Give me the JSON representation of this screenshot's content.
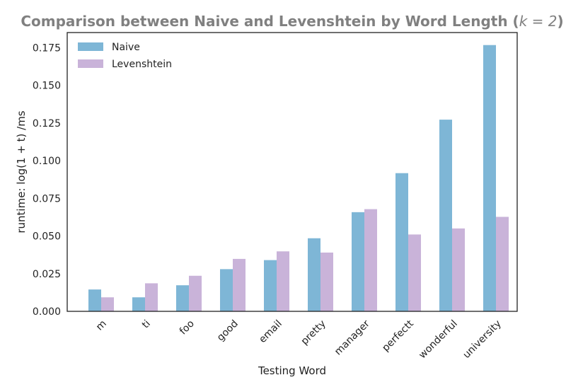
{
  "chart_data": {
    "type": "bar",
    "title": "Comparison between Naive and Levenshtein by Word Length (",
    "title_math": "k = 2",
    "title_close": ")",
    "xlabel": "Testing Word",
    "ylabel": "runtime: log(1 + t) /ms",
    "categories": [
      "m",
      "ti",
      "foo",
      "good",
      "email",
      "pretty",
      "manager",
      "perfectt",
      "wonderful",
      "university"
    ],
    "series": [
      {
        "name": "Naive",
        "color": "#7eb6d6",
        "values": [
          0.0145,
          0.0093,
          0.0173,
          0.028,
          0.034,
          0.0485,
          0.0658,
          0.0917,
          0.1272,
          0.1767
        ]
      },
      {
        "name": "Levenshtein",
        "color": "#c9b3d9",
        "values": [
          0.0093,
          0.0186,
          0.0236,
          0.0348,
          0.0398,
          0.039,
          0.0678,
          0.051,
          0.055,
          0.0627
        ]
      }
    ],
    "ylim": [
      0,
      0.185
    ],
    "yticks": [
      "0.000",
      "0.025",
      "0.050",
      "0.075",
      "0.100",
      "0.125",
      "0.150",
      "0.175"
    ],
    "grid": false,
    "legend_position": "top-left"
  }
}
